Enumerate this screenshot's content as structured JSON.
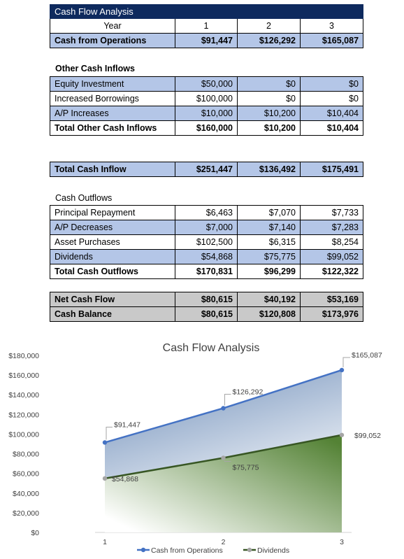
{
  "table": {
    "title": "Cash Flow Analysis",
    "year_label": "Year",
    "years": [
      "1",
      "2",
      "3"
    ],
    "cash_from_operations": {
      "label": "Cash from Operations",
      "values": [
        "$91,447",
        "$126,292",
        "$165,087"
      ]
    },
    "other_inflows": {
      "heading": "Other Cash Inflows",
      "rows": [
        {
          "label": "Equity Investment",
          "values": [
            "$50,000",
            "$0",
            "$0"
          ]
        },
        {
          "label": "Increased Borrowings",
          "values": [
            "$100,000",
            "$0",
            "$0"
          ]
        },
        {
          "label": "A/P Increases",
          "values": [
            "$10,000",
            "$10,200",
            "$10,404"
          ]
        }
      ],
      "total": {
        "label": "Total Other Cash Inflows",
        "values": [
          "$160,000",
          "$10,200",
          "$10,404"
        ]
      }
    },
    "total_cash_inflow": {
      "label": "Total Cash Inflow",
      "values": [
        "$251,447",
        "$136,492",
        "$175,491"
      ]
    },
    "outflows": {
      "heading": "Cash Outflows",
      "rows": [
        {
          "label": "Principal Repayment",
          "values": [
            "$6,463",
            "$7,070",
            "$7,733"
          ]
        },
        {
          "label": "A/P Decreases",
          "values": [
            "$7,000",
            "$7,140",
            "$7,283"
          ]
        },
        {
          "label": "Asset Purchases",
          "values": [
            "$102,500",
            "$6,315",
            "$8,254"
          ]
        },
        {
          "label": "Dividends",
          "values": [
            "$54,868",
            "$75,775",
            "$99,052"
          ]
        }
      ],
      "total": {
        "label": "Total Cash Outflows",
        "values": [
          "$170,831",
          "$96,299",
          "$122,322"
        ]
      }
    },
    "net_cash_flow": {
      "label": "Net Cash Flow",
      "values": [
        "$80,615",
        "$40,192",
        "$53,169"
      ]
    },
    "cash_balance": {
      "label": "Cash Balance",
      "values": [
        "$80,615",
        "$120,808",
        "$173,976"
      ]
    }
  },
  "chart_data": {
    "type": "area",
    "title": "Cash Flow Analysis",
    "x": [
      "1",
      "2",
      "3"
    ],
    "ylim": [
      0,
      180000
    ],
    "yticks": [
      0,
      20000,
      40000,
      60000,
      80000,
      100000,
      120000,
      140000,
      160000,
      180000
    ],
    "ytick_labels": [
      "$0",
      "$20,000",
      "$40,000",
      "$60,000",
      "$80,000",
      "$100,000",
      "$120,000",
      "$140,000",
      "$160,000",
      "$180,000"
    ],
    "grid": false,
    "legend_position": "bottom",
    "series": [
      {
        "name": "Cash from Operations",
        "values": [
          91447,
          126292,
          165087
        ],
        "labels": [
          "$91,447",
          "$126,292",
          "$165,087"
        ],
        "color": "#4472c4",
        "fill_top": "#6c8cb8",
        "fill_bottom": "#ffffff"
      },
      {
        "name": "Dividends",
        "values": [
          54868,
          75775,
          99052
        ],
        "labels": [
          "$54,868",
          "$75,775",
          "$99,052"
        ],
        "color": "#375623",
        "marker_color": "#a5a5a5",
        "fill_top": "#548235",
        "fill_bottom": "#ffffff"
      }
    ]
  }
}
